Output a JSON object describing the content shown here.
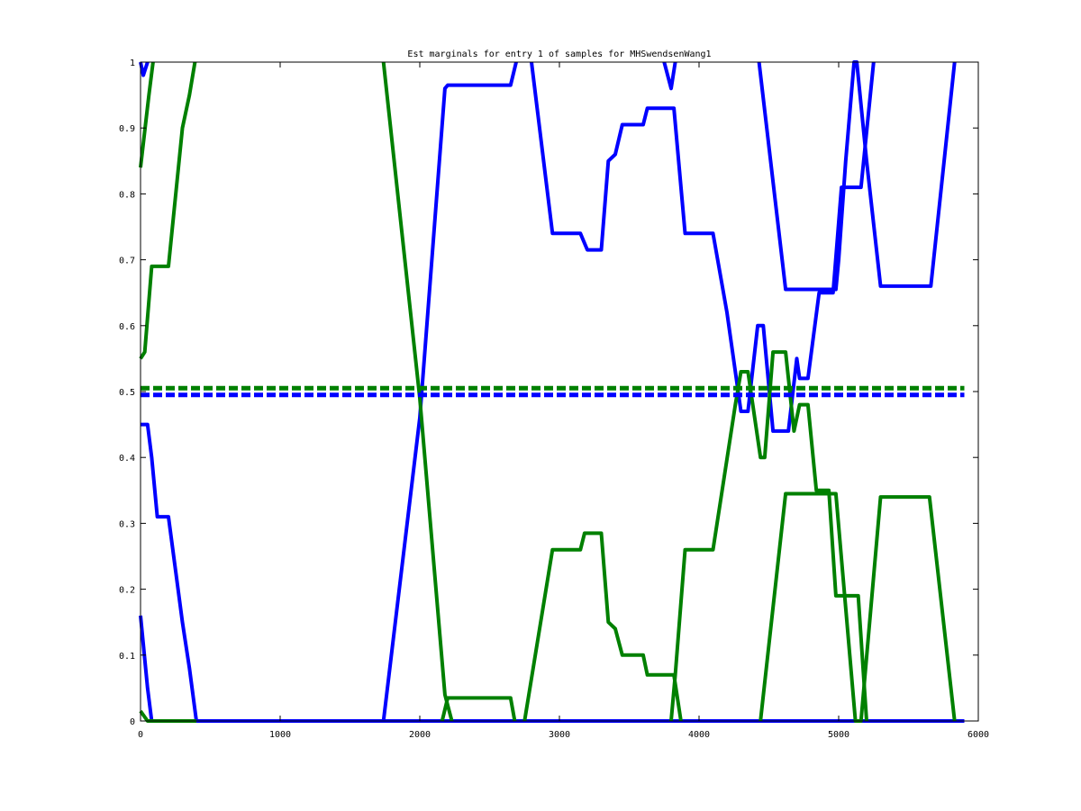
{
  "chart_data": {
    "type": "line",
    "title": "Est marginals for entry 1 of samples for MHSwendsenWang1",
    "xlabel": "",
    "ylabel": "",
    "xlim": [
      0,
      6000
    ],
    "ylim": [
      0,
      1
    ],
    "xticks": [
      0,
      1000,
      2000,
      3000,
      4000,
      5000,
      6000
    ],
    "yticks": [
      0,
      0.1,
      0.2,
      0.3,
      0.4,
      0.5,
      0.6,
      0.7,
      0.8,
      0.9,
      1
    ],
    "grid": false,
    "legend": "none",
    "colors": {
      "blue": "#0000ff",
      "green": "#008000"
    },
    "series": [
      {
        "color": "blue",
        "style": "solid",
        "width": 4,
        "points": [
          [
            0,
            1.0
          ],
          [
            20,
            0.98
          ],
          [
            50,
            1.0
          ],
          [
            50,
            1.0
          ]
        ]
      },
      {
        "color": "blue",
        "style": "solid",
        "width": 4,
        "points": [
          [
            0,
            0.45
          ],
          [
            50,
            0.45
          ],
          [
            80,
            0.4
          ],
          [
            120,
            0.31
          ],
          [
            200,
            0.31
          ],
          [
            300,
            0.15
          ],
          [
            350,
            0.08
          ],
          [
            400,
            0.0
          ]
        ]
      },
      {
        "color": "blue",
        "style": "solid",
        "width": 4,
        "points": [
          [
            0,
            0.16
          ],
          [
            50,
            0.05
          ],
          [
            80,
            0.0
          ],
          [
            5900,
            0.0
          ]
        ]
      },
      {
        "color": "blue",
        "style": "solid",
        "width": 4,
        "points": [
          [
            1740,
            0.0
          ],
          [
            2000,
            0.46
          ],
          [
            2180,
            0.96
          ],
          [
            2200,
            0.965
          ],
          [
            2650,
            0.965
          ],
          [
            2690,
            1.0
          ]
        ]
      },
      {
        "color": "blue",
        "style": "solid",
        "width": 4,
        "points": [
          [
            2800,
            1.0
          ],
          [
            2950,
            0.74
          ],
          [
            3150,
            0.74
          ],
          [
            3200,
            0.715
          ],
          [
            3300,
            0.715
          ],
          [
            3350,
            0.85
          ],
          [
            3400,
            0.86
          ],
          [
            3450,
            0.905
          ],
          [
            3600,
            0.905
          ],
          [
            3630,
            0.93
          ],
          [
            3820,
            0.93
          ],
          [
            3900,
            0.74
          ],
          [
            4100,
            0.74
          ],
          [
            4200,
            0.62
          ],
          [
            4260,
            0.53
          ],
          [
            4300,
            0.47
          ],
          [
            4350,
            0.47
          ],
          [
            4420,
            0.6
          ],
          [
            4460,
            0.6
          ],
          [
            4530,
            0.44
          ],
          [
            4640,
            0.44
          ],
          [
            4700,
            0.55
          ],
          [
            4720,
            0.52
          ],
          [
            4780,
            0.52
          ],
          [
            4860,
            0.65
          ],
          [
            4960,
            0.65
          ],
          [
            5020,
            0.81
          ],
          [
            5160,
            0.81
          ],
          [
            5250,
            1.0
          ]
        ]
      },
      {
        "color": "blue",
        "style": "solid",
        "width": 4,
        "points": [
          [
            3750,
            1.0
          ],
          [
            3800,
            0.96
          ],
          [
            3830,
            1.0
          ]
        ]
      },
      {
        "color": "blue",
        "style": "solid",
        "width": 4,
        "points": [
          [
            4430,
            1.0
          ],
          [
            4620,
            0.655
          ],
          [
            4980,
            0.655
          ],
          [
            5000,
            0.7
          ],
          [
            5050,
            0.85
          ],
          [
            5110,
            1.0
          ],
          [
            5130,
            1.0
          ],
          [
            5200,
            0.85
          ],
          [
            5300,
            0.66
          ],
          [
            5660,
            0.66
          ],
          [
            5830,
            1.0
          ]
        ]
      },
      {
        "color": "green",
        "style": "solid",
        "width": 4,
        "points": [
          [
            0,
            0.84
          ],
          [
            60,
            0.95
          ],
          [
            90,
            1.0
          ]
        ]
      },
      {
        "color": "green",
        "style": "solid",
        "width": 4,
        "points": [
          [
            0,
            0.55
          ],
          [
            30,
            0.56
          ],
          [
            80,
            0.69
          ],
          [
            200,
            0.69
          ],
          [
            300,
            0.9
          ],
          [
            350,
            0.95
          ],
          [
            390,
            1.0
          ]
        ]
      },
      {
        "color": "green",
        "style": "solid",
        "width": 4,
        "points": [
          [
            0,
            0.015
          ],
          [
            50,
            0.0
          ],
          [
            400,
            0.0
          ]
        ]
      },
      {
        "color": "green",
        "style": "solid",
        "width": 4,
        "points": [
          [
            1740,
            1.0
          ],
          [
            2000,
            0.49
          ],
          [
            2180,
            0.04
          ],
          [
            2230,
            0.0
          ]
        ]
      },
      {
        "color": "green",
        "style": "solid",
        "width": 4,
        "points": [
          [
            2160,
            0.0
          ],
          [
            2200,
            0.035
          ],
          [
            2650,
            0.035
          ],
          [
            2680,
            0.0
          ]
        ]
      },
      {
        "color": "green",
        "style": "solid",
        "width": 4,
        "points": [
          [
            2750,
            0.0
          ],
          [
            2950,
            0.26
          ],
          [
            3150,
            0.26
          ],
          [
            3180,
            0.285
          ],
          [
            3300,
            0.285
          ],
          [
            3350,
            0.15
          ],
          [
            3400,
            0.14
          ],
          [
            3450,
            0.1
          ],
          [
            3600,
            0.1
          ],
          [
            3630,
            0.07
          ],
          [
            3820,
            0.07
          ],
          [
            3870,
            0.0
          ]
        ]
      },
      {
        "color": "green",
        "style": "solid",
        "width": 4,
        "points": [
          [
            3800,
            0.0
          ],
          [
            3830,
            0.07
          ],
          [
            3900,
            0.26
          ],
          [
            4100,
            0.26
          ],
          [
            4180,
            0.37
          ],
          [
            4260,
            0.48
          ],
          [
            4300,
            0.53
          ],
          [
            4350,
            0.53
          ],
          [
            4440,
            0.4
          ],
          [
            4470,
            0.4
          ],
          [
            4530,
            0.56
          ],
          [
            4620,
            0.56
          ],
          [
            4680,
            0.44
          ],
          [
            4720,
            0.48
          ],
          [
            4780,
            0.48
          ],
          [
            4840,
            0.35
          ],
          [
            4930,
            0.35
          ],
          [
            4980,
            0.19
          ],
          [
            5140,
            0.19
          ],
          [
            5200,
            0.0
          ]
        ]
      },
      {
        "color": "green",
        "style": "solid",
        "width": 4,
        "points": [
          [
            4440,
            0.0
          ],
          [
            4620,
            0.345
          ],
          [
            4980,
            0.345
          ],
          [
            5120,
            0.0
          ],
          [
            5160,
            0.0
          ],
          [
            5300,
            0.34
          ],
          [
            5650,
            0.34
          ],
          [
            5830,
            0.0
          ]
        ]
      },
      {
        "color": "green",
        "style": "solid",
        "width": 1,
        "points": [
          [
            0,
            1.0
          ],
          [
            5900,
            1.0
          ]
        ]
      },
      {
        "color": "green",
        "style": "dashed",
        "width": 5,
        "points": [
          [
            0,
            0.505
          ],
          [
            5900,
            0.505
          ]
        ]
      },
      {
        "color": "blue",
        "style": "dashed",
        "width": 5,
        "points": [
          [
            0,
            0.495
          ],
          [
            5900,
            0.495
          ]
        ]
      }
    ]
  }
}
